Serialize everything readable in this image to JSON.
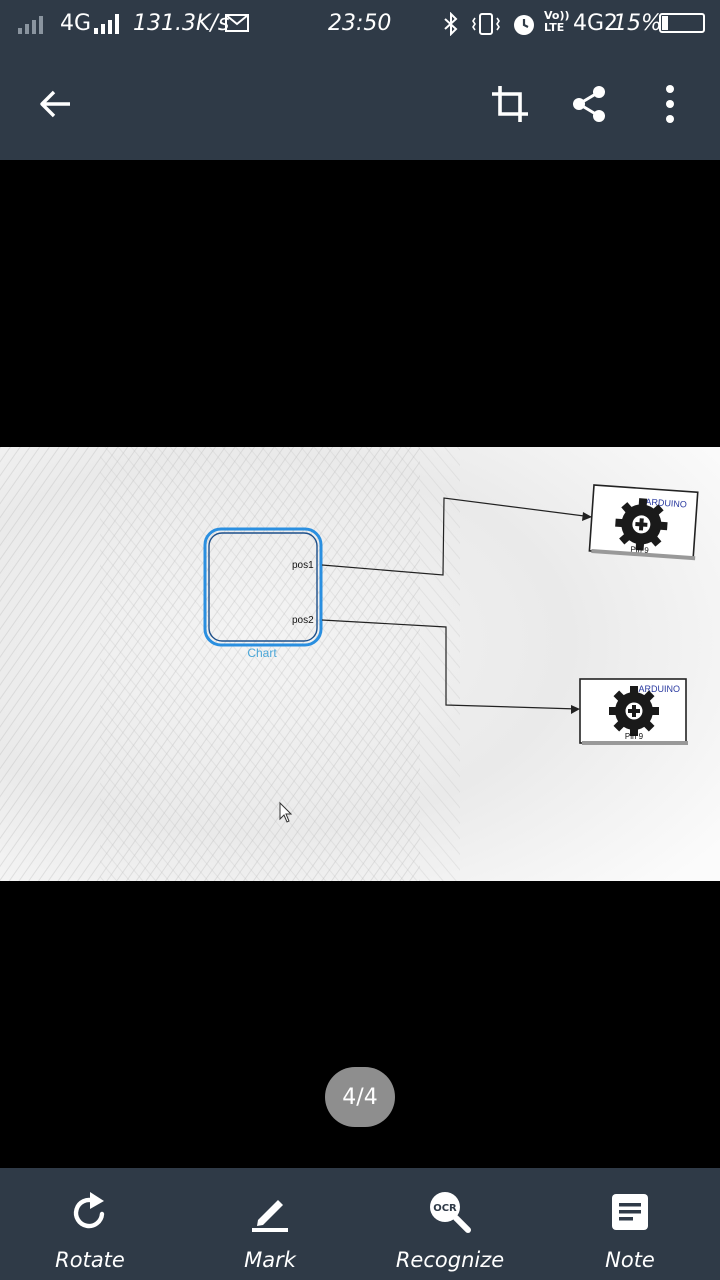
{
  "status_bar": {
    "network_label": "4G",
    "speed": "131.3K/s",
    "time": "23:50",
    "volte_top": "Vo))",
    "volte_bottom": "LTE",
    "network2_label": "4G2",
    "battery_percent": "15%",
    "battery_level": 0.15
  },
  "app_bar": {
    "icons": [
      "back-arrow-icon",
      "crop-icon",
      "share-icon",
      "more-vert-icon"
    ]
  },
  "photo": {
    "chart_block_label": "Chart",
    "port1_label": "pos1",
    "port2_label": "pos2",
    "arduino1": {
      "title": "ARDUINO",
      "pin": "Pin 9"
    },
    "arduino2": {
      "title": "ARDUINO",
      "pin": "Pin 9"
    }
  },
  "pager": {
    "text": "4/4"
  },
  "bottom_bar": {
    "items": [
      {
        "label": "Rotate",
        "icon": "rotate-icon"
      },
      {
        "label": "Mark",
        "icon": "pen-icon"
      },
      {
        "label": "Recognize",
        "icon": "ocr-icon"
      },
      {
        "label": "Note",
        "icon": "note-icon"
      }
    ],
    "ocr_icon_text": "OCR"
  }
}
